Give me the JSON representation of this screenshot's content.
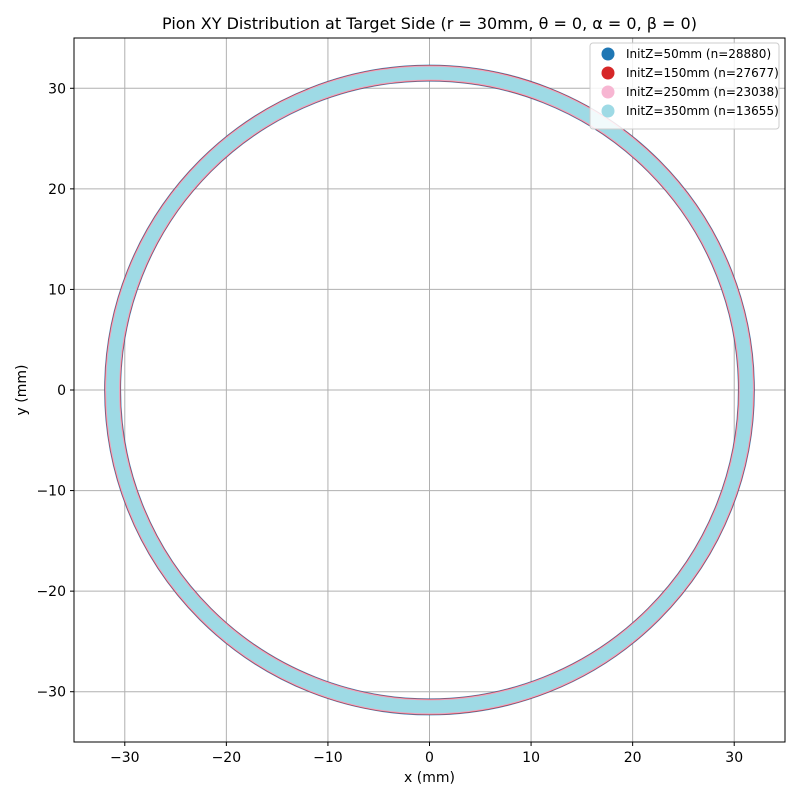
{
  "chart_data": {
    "type": "scatter",
    "title": "Pion XY Distribution at Target Side (r = 30mm, θ = 0, α = 0, β = 0)",
    "xlabel": "x (mm)",
    "ylabel": "y (mm)",
    "xlim": [
      -35,
      35
    ],
    "ylim": [
      -35,
      35
    ],
    "xticks": [
      -30,
      -20,
      -10,
      0,
      10,
      20,
      30
    ],
    "yticks": [
      -30,
      -20,
      -10,
      0,
      10,
      20,
      30
    ],
    "xtick_labels": [
      "−30",
      "−20",
      "−10",
      "0",
      "10",
      "20",
      "30"
    ],
    "ytick_labels": [
      "−30",
      "−20",
      "−10",
      "0",
      "10",
      "20",
      "30"
    ],
    "grid": true,
    "legend_position": "top-right",
    "ring": {
      "center": [
        0,
        0
      ],
      "radius": 31.2
    },
    "series": [
      {
        "name": "InitZ=50mm (n=28880)",
        "color": "#1f77b4"
      },
      {
        "name": "InitZ=150mm (n=27677)",
        "color": "#d62728"
      },
      {
        "name": "InitZ=250mm (n=23038)",
        "color": "#f7b6d2"
      },
      {
        "name": "InitZ=350mm (n=13655)",
        "color": "#9edae5"
      }
    ]
  }
}
